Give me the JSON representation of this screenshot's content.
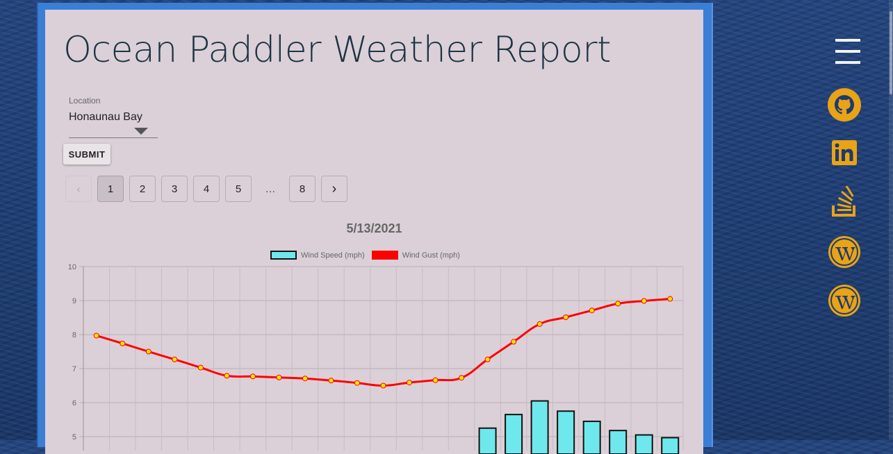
{
  "page": {
    "title": "Ocean Paddler Weather Report"
  },
  "form": {
    "location_label": "Location",
    "location_value": "Honaunau Bay",
    "submit_label": "SUBMIT"
  },
  "pagination": {
    "prev": "‹",
    "pages": [
      "1",
      "2",
      "3",
      "4",
      "5"
    ],
    "ellipsis": "…",
    "last": "8",
    "next": "›",
    "active": "1"
  },
  "nav": {
    "icons": [
      "menu-icon",
      "github-icon",
      "linkedin-icon",
      "stackoverflow-icon",
      "wordpress-icon",
      "wordpress-icon"
    ],
    "accent": "#e8a317"
  },
  "chart_data": {
    "type": "bar",
    "title": "5/13/2021",
    "ylim": [
      5,
      10
    ],
    "yticks": [
      "10",
      "9",
      "8",
      "7",
      "6",
      "5"
    ],
    "grid": true,
    "legend_position": "top",
    "colors": {
      "wind_speed": "#6ee8ec",
      "wind_gust": "#ff0000",
      "point_fill": "#ffe600"
    },
    "series": [
      {
        "name": "Wind Speed (mph)",
        "kind": "bar",
        "values": [
          null,
          null,
          null,
          null,
          null,
          null,
          null,
          null,
          null,
          null,
          null,
          null,
          null,
          null,
          null,
          5.25,
          5.65,
          6.05,
          5.75,
          5.45,
          5.18,
          5.05,
          4.97
        ]
      },
      {
        "name": "Wind Gust (mph)",
        "kind": "line",
        "values": [
          7.97,
          7.74,
          7.5,
          7.27,
          7.03,
          6.79,
          6.77,
          6.74,
          6.71,
          6.65,
          6.58,
          6.5,
          6.59,
          6.66,
          6.73,
          7.27,
          7.79,
          8.31,
          8.51,
          8.71,
          8.91,
          8.99,
          9.05
        ]
      }
    ]
  }
}
